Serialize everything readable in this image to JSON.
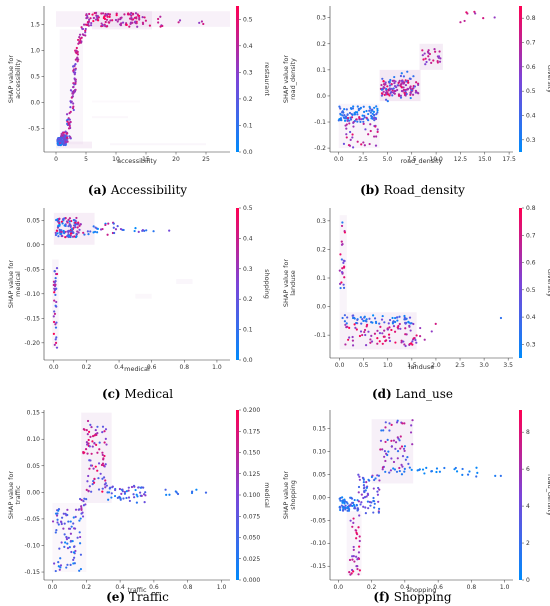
{
  "chart_data": [
    {
      "type": "scatter",
      "caption_letter": "(a)",
      "caption_name": "Accessibility",
      "xlabel": "accessibility",
      "ylabel": [
        "SHAP value for",
        "accessibility"
      ],
      "colorbar_label": "restaurant",
      "xlim": [
        -2,
        29
      ],
      "ylim": [
        -0.95,
        1.85
      ],
      "xticks": [
        0,
        5,
        10,
        15,
        20,
        25
      ],
      "yticks": [
        -0.5,
        0.0,
        0.5,
        1.0,
        1.5
      ],
      "ytick_labels": [
        "-0.5",
        "0.0",
        "0.5",
        "1.0",
        "1.5"
      ],
      "cbar_range": [
        0,
        0.55
      ],
      "cbar_ticks": [
        0.0,
        0.1,
        0.2,
        0.3,
        0.4,
        0.5
      ],
      "cbar_tick_labels": [
        "0.0",
        "0.1",
        "0.2",
        "0.3",
        "0.4",
        "0.5"
      ],
      "clusters": [
        {
          "x": [
            0.2,
            1.8
          ],
          "y": [
            -0.82,
            -0.65
          ],
          "n": 90,
          "c": [
            0.0,
            0.25
          ]
        },
        {
          "x": [
            0.5,
            2.0
          ],
          "y": [
            -0.78,
            -0.55
          ],
          "n": 40,
          "c": [
            0.15,
            0.5
          ]
        },
        {
          "x": [
            1.8,
            2.5
          ],
          "y": [
            -0.7,
            -0.2
          ],
          "n": 25,
          "c": [
            0.1,
            0.5
          ]
        },
        {
          "x": [
            2.4,
            3.0
          ],
          "y": [
            -0.2,
            0.3
          ],
          "n": 20,
          "c": [
            0.2,
            0.5
          ]
        },
        {
          "x": [
            2.8,
            3.3
          ],
          "y": [
            0.2,
            0.75
          ],
          "n": 25,
          "c": [
            0.2,
            0.5
          ]
        },
        {
          "x": [
            3.2,
            3.8
          ],
          "y": [
            0.7,
            1.05
          ],
          "n": 15,
          "c": [
            0.3,
            0.5
          ]
        },
        {
          "x": [
            3.6,
            4.3
          ],
          "y": [
            1.05,
            1.3
          ],
          "n": 12,
          "c": [
            0.3,
            0.5
          ]
        },
        {
          "x": [
            4.2,
            5.0
          ],
          "y": [
            1.25,
            1.5
          ],
          "n": 10,
          "c": [
            0.3,
            0.5
          ]
        },
        {
          "x": [
            5.0,
            14.0
          ],
          "y": [
            1.45,
            1.72
          ],
          "n": 110,
          "c": [
            0.3,
            0.55
          ]
        },
        {
          "x": [
            14.0,
            18.0
          ],
          "y": [
            1.45,
            1.65
          ],
          "n": 12,
          "c": [
            0.3,
            0.5
          ]
        },
        {
          "x": [
            20.0,
            26.5
          ],
          "y": [
            1.45,
            1.6
          ],
          "n": 5,
          "c": [
            0.3,
            0.5
          ]
        }
      ],
      "shadows": [
        {
          "x": [
            0,
            30
          ],
          "y": [
            1.45,
            1.75
          ],
          "a": 0.18
        },
        {
          "x": [
            6,
            16
          ],
          "y": [
            1.4,
            1.75
          ],
          "a": 0.2
        },
        {
          "x": [
            0.6,
            4.5
          ],
          "y": [
            -0.8,
            1.4
          ],
          "a": 0.12
        },
        {
          "x": [
            0,
            6
          ],
          "y": [
            -0.88,
            -0.75
          ],
          "a": 0.22
        },
        {
          "x": [
            9,
            25
          ],
          "y": [
            -0.82,
            -0.78
          ],
          "a": 0.12
        },
        {
          "x": [
            6,
            12
          ],
          "y": [
            -0.3,
            -0.26
          ],
          "a": 0.1
        },
        {
          "x": [
            6,
            14
          ],
          "y": [
            0.0,
            0.04
          ],
          "a": 0.08
        }
      ]
    },
    {
      "type": "scatter",
      "caption_letter": "(b)",
      "caption_name": "Road_density",
      "xlabel": "road_density",
      "ylabel": [
        "SHAP value for",
        "road_density"
      ],
      "colorbar_label": "diversity",
      "xlim": [
        -0.9,
        17.9
      ],
      "ylim": [
        -0.215,
        0.345
      ],
      "xticks": [
        0.0,
        2.5,
        5.0,
        7.5,
        10.0,
        12.5,
        15.0,
        17.5
      ],
      "yticks": [
        -0.2,
        -0.1,
        0.0,
        0.1,
        0.2,
        0.3
      ],
      "ytick_labels": [
        "-0.2",
        "-0.1",
        "0.0",
        "0.1",
        "0.2",
        "0.3"
      ],
      "cbar_range": [
        0.25,
        0.85
      ],
      "cbar_ticks": [
        0.3,
        0.4,
        0.5,
        0.6,
        0.7,
        0.8
      ],
      "cbar_tick_labels": [
        "0.3",
        "0.4",
        "0.5",
        "0.6",
        "0.7",
        "0.8"
      ],
      "clusters": [
        {
          "x": [
            0.0,
            4.0
          ],
          "y": [
            -0.1,
            -0.04
          ],
          "n": 90,
          "c": [
            0.25,
            0.45
          ]
        },
        {
          "x": [
            0.5,
            4.0
          ],
          "y": [
            -0.2,
            -0.08
          ],
          "n": 45,
          "c": [
            0.5,
            0.8
          ]
        },
        {
          "x": [
            4.3,
            8.2
          ],
          "y": [
            0.0,
            0.06
          ],
          "n": 110,
          "c": [
            0.55,
            0.85
          ]
        },
        {
          "x": [
            4.3,
            8.0
          ],
          "y": [
            -0.02,
            0.1
          ],
          "n": 30,
          "c": [
            0.3,
            0.5
          ]
        },
        {
          "x": [
            8.5,
            10.5
          ],
          "y": [
            0.12,
            0.18
          ],
          "n": 25,
          "c": [
            0.55,
            0.8
          ]
        },
        {
          "x": [
            12.2,
            16.5
          ],
          "y": [
            0.28,
            0.33
          ],
          "n": 8,
          "c": [
            0.6,
            0.8
          ]
        }
      ],
      "shadows": [
        {
          "x": [
            4.2,
            8.4
          ],
          "y": [
            -0.02,
            0.1
          ],
          "a": 0.3
        },
        {
          "x": [
            8.3,
            10.7
          ],
          "y": [
            0.1,
            0.2
          ],
          "a": 0.25
        },
        {
          "x": [
            0,
            4.2
          ],
          "y": [
            -0.2,
            -0.03
          ],
          "a": 0.15
        }
      ]
    },
    {
      "type": "scatter",
      "caption_letter": "(c)",
      "caption_name": "Medical",
      "xlabel": "medical",
      "ylabel": [
        "SHAP value for",
        "medical"
      ],
      "colorbar_label": "shopping",
      "xlim": [
        -0.06,
        1.08
      ],
      "ylim": [
        -0.235,
        0.075
      ],
      "xticks": [
        0.0,
        0.2,
        0.4,
        0.6,
        0.8,
        1.0
      ],
      "yticks": [
        -0.2,
        -0.15,
        -0.1,
        -0.05,
        0.0,
        0.05
      ],
      "ytick_labels": [
        "-0.20",
        "-0.15",
        "-0.10",
        "-0.05",
        "0.00",
        "0.05"
      ],
      "cbar_range": [
        0,
        0.5
      ],
      "cbar_ticks": [
        0.0,
        0.1,
        0.2,
        0.3,
        0.4,
        0.5
      ],
      "cbar_tick_labels": [
        "0.0",
        "0.1",
        "0.2",
        "0.3",
        "0.4",
        "0.5"
      ],
      "clusters": [
        {
          "x": [
            0.01,
            0.15
          ],
          "y": [
            0.015,
            0.055
          ],
          "n": 110,
          "c": [
            0.0,
            0.5
          ]
        },
        {
          "x": [
            0.15,
            0.4
          ],
          "y": [
            0.02,
            0.045
          ],
          "n": 30,
          "c": [
            0.0,
            0.4
          ]
        },
        {
          "x": [
            0.4,
            0.75
          ],
          "y": [
            0.025,
            0.035
          ],
          "n": 12,
          "c": [
            0.0,
            0.3
          ]
        },
        {
          "x": [
            0.0,
            0.02
          ],
          "y": [
            -0.21,
            -0.04
          ],
          "n": 35,
          "c": [
            0.1,
            0.5
          ]
        }
      ],
      "shadows": [
        {
          "x": [
            0,
            0.25
          ],
          "y": [
            0.0,
            0.065
          ],
          "a": 0.22
        },
        {
          "x": [
            -0.01,
            0.03
          ],
          "y": [
            -0.21,
            -0.03
          ],
          "a": 0.15
        },
        {
          "x": [
            0.75,
            0.85
          ],
          "y": [
            -0.08,
            -0.07
          ],
          "a": 0.12
        },
        {
          "x": [
            0.5,
            0.6
          ],
          "y": [
            -0.11,
            -0.1
          ],
          "a": 0.1
        }
      ]
    },
    {
      "type": "scatter",
      "caption_letter": "(d)",
      "caption_name": "Land_use",
      "xlabel": "landuse",
      "ylabel": [
        "SHAP value for",
        "landuse"
      ],
      "colorbar_label": "diversity",
      "xlim": [
        -0.2,
        3.6
      ],
      "ylim": [
        -0.18,
        0.345
      ],
      "xticks": [
        0.0,
        0.5,
        1.0,
        1.5,
        2.0,
        2.5,
        3.0,
        3.5
      ],
      "yticks": [
        -0.1,
        0.0,
        0.1,
        0.2,
        0.3
      ],
      "ytick_labels": [
        "-0.1",
        "0.0",
        "0.1",
        "0.2",
        "0.3"
      ],
      "cbar_range": [
        0.25,
        0.8
      ],
      "cbar_ticks": [
        0.3,
        0.4,
        0.5,
        0.6,
        0.7,
        0.8
      ],
      "cbar_tick_labels": [
        "0.3",
        "0.4",
        "0.5",
        "0.6",
        "0.7",
        "0.8"
      ],
      "clusters": [
        {
          "x": [
            0.0,
            0.12
          ],
          "y": [
            0.0,
            0.32
          ],
          "n": 25,
          "c": [
            0.3,
            0.8
          ]
        },
        {
          "x": [
            0.05,
            1.5
          ],
          "y": [
            -0.06,
            -0.03
          ],
          "n": 60,
          "c": [
            0.25,
            0.5
          ]
        },
        {
          "x": [
            0.1,
            1.6
          ],
          "y": [
            -0.14,
            -0.06
          ],
          "n": 80,
          "c": [
            0.5,
            0.8
          ]
        },
        {
          "x": [
            1.6,
            2.0
          ],
          "y": [
            -0.12,
            -0.06
          ],
          "n": 5,
          "c": [
            0.5,
            0.8
          ]
        }
      ],
      "extra_points": [
        [
          3.35,
          -0.04,
          0.35
        ]
      ],
      "shadows": [
        {
          "x": [
            0.0,
            0.15
          ],
          "y": [
            -0.02,
            0.32
          ],
          "a": 0.15
        },
        {
          "x": [
            0.0,
            1.6
          ],
          "y": [
            -0.15,
            -0.02
          ],
          "a": 0.2
        }
      ]
    },
    {
      "type": "scatter",
      "caption_letter": "(e)",
      "caption_name": "Traffic",
      "xlabel": "traffic",
      "ylabel": [
        "SHAP value for",
        "traffic"
      ],
      "colorbar_label": "medical",
      "xlim": [
        -0.05,
        1.05
      ],
      "ylim": [
        -0.165,
        0.155
      ],
      "xticks": [
        0.0,
        0.2,
        0.4,
        0.6,
        0.8,
        1.0
      ],
      "yticks": [
        -0.15,
        -0.1,
        -0.05,
        0.0,
        0.05,
        0.1,
        0.15
      ],
      "ytick_labels": [
        "-0.15",
        "-0.10",
        "-0.05",
        "0.00",
        "0.05",
        "0.10",
        "0.15"
      ],
      "cbar_range": [
        0,
        0.2
      ],
      "cbar_ticks": [
        0.0,
        0.025,
        0.05,
        0.075,
        0.1,
        0.125,
        0.15,
        0.175,
        0.2
      ],
      "cbar_tick_labels": [
        "0.000",
        "0.025",
        "0.050",
        "0.075",
        "0.100",
        "0.125",
        "0.150",
        "0.175",
        "0.200"
      ],
      "clusters": [
        {
          "x": [
            0.0,
            0.17
          ],
          "y": [
            -0.15,
            -0.03
          ],
          "n": 80,
          "c": [
            0.0,
            0.12
          ]
        },
        {
          "x": [
            0.15,
            0.2
          ],
          "y": [
            -0.05,
            0.0
          ],
          "n": 15,
          "c": [
            0.05,
            0.15
          ]
        },
        {
          "x": [
            0.18,
            0.24
          ],
          "y": [
            0.07,
            0.14
          ],
          "n": 15,
          "c": [
            0.12,
            0.2
          ]
        },
        {
          "x": [
            0.2,
            0.32
          ],
          "y": [
            0.0,
            0.13
          ],
          "n": 70,
          "c": [
            0.05,
            0.2
          ]
        },
        {
          "x": [
            0.3,
            0.55
          ],
          "y": [
            -0.02,
            0.015
          ],
          "n": 55,
          "c": [
            0.0,
            0.12
          ]
        },
        {
          "x": [
            0.55,
            1.0
          ],
          "y": [
            -0.005,
            0.005
          ],
          "n": 10,
          "c": [
            0.0,
            0.08
          ]
        }
      ],
      "shadows": [
        {
          "x": [
            0.17,
            0.35
          ],
          "y": [
            -0.02,
            0.15
          ],
          "a": 0.2
        },
        {
          "x": [
            0.0,
            0.2
          ],
          "y": [
            -0.15,
            -0.02
          ],
          "a": 0.1
        }
      ]
    },
    {
      "type": "scatter",
      "caption_letter": "(f)",
      "caption_name": "Shopping",
      "xlabel": "shopping",
      "ylabel": [
        "SHAP value for",
        "shopping"
      ],
      "colorbar_label": "road_density",
      "xlim": [
        -0.05,
        1.05
      ],
      "ylim": [
        -0.18,
        0.19
      ],
      "xticks": [
        0.0,
        0.2,
        0.4,
        0.6,
        0.8,
        1.0
      ],
      "yticks": [
        -0.15,
        -0.1,
        -0.05,
        0.0,
        0.05,
        0.1,
        0.15
      ],
      "ytick_labels": [
        "-0.15",
        "-0.10",
        "-0.05",
        "0.00",
        "0.05",
        "0.10",
        "0.15"
      ],
      "cbar_range": [
        0,
        9.2
      ],
      "cbar_ticks": [
        0,
        2,
        4,
        6,
        8
      ],
      "cbar_tick_labels": [
        "0",
        "2",
        "4",
        "6",
        "8"
      ],
      "clusters": [
        {
          "x": [
            0.0,
            0.12
          ],
          "y": [
            -0.03,
            0.0
          ],
          "n": 60,
          "c": [
            0,
            4
          ]
        },
        {
          "x": [
            0.06,
            0.13
          ],
          "y": [
            -0.17,
            -0.03
          ],
          "n": 35,
          "c": [
            4,
            9
          ]
        },
        {
          "x": [
            0.12,
            0.25
          ],
          "y": [
            -0.04,
            0.05
          ],
          "n": 60,
          "c": [
            1,
            6
          ]
        },
        {
          "x": [
            0.25,
            0.45
          ],
          "y": [
            0.05,
            0.17
          ],
          "n": 60,
          "c": [
            1,
            8
          ]
        },
        {
          "x": [
            0.3,
            0.75
          ],
          "y": [
            0.055,
            0.065
          ],
          "n": 20,
          "c": [
            0,
            2
          ]
        },
        {
          "x": [
            0.5,
            1.0
          ],
          "y": [
            0.045,
            0.065
          ],
          "n": 12,
          "c": [
            0,
            2
          ]
        }
      ],
      "shadows": [
        {
          "x": [
            0.2,
            0.45
          ],
          "y": [
            0.03,
            0.17
          ],
          "a": 0.2
        },
        {
          "x": [
            0.05,
            0.14
          ],
          "y": [
            -0.17,
            -0.03
          ],
          "a": 0.15
        }
      ]
    }
  ]
}
